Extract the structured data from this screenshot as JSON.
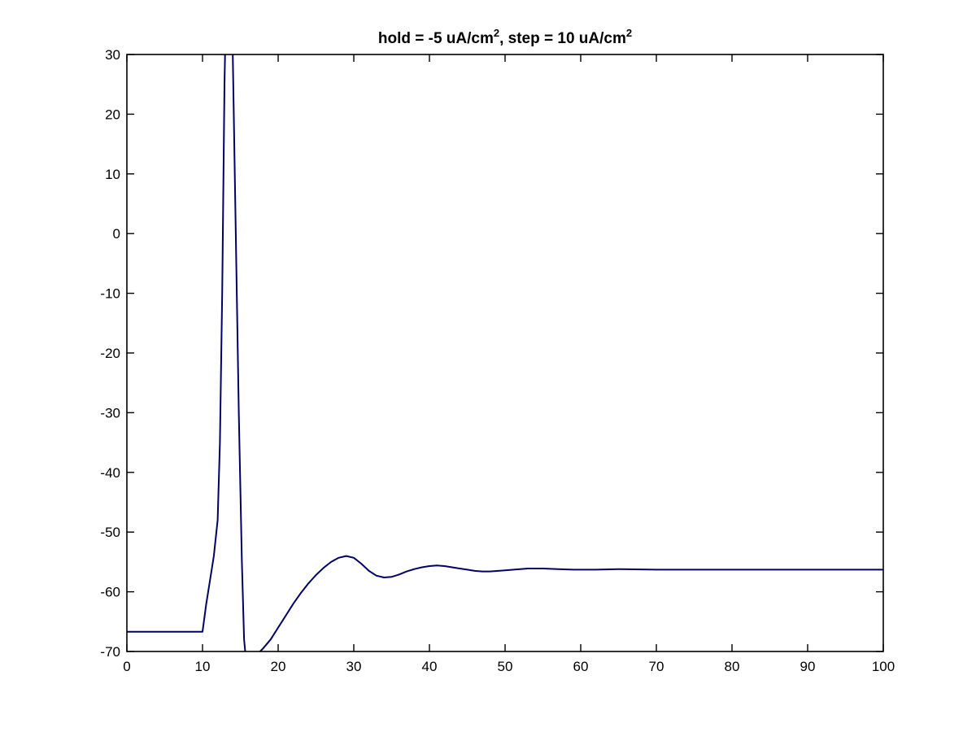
{
  "chart_data": {
    "type": "line",
    "title": {
      "parts": [
        {
          "text": "hold = -5 uA/cm",
          "sup": false
        },
        {
          "text": "2",
          "sup": true
        },
        {
          "text": ", step = 10 uA/cm",
          "sup": false
        },
        {
          "text": "2",
          "sup": true
        }
      ]
    },
    "xlabel": "",
    "ylabel": "",
    "xlim": [
      0,
      100
    ],
    "ylim": [
      -70,
      30
    ],
    "xticks": [
      0,
      10,
      20,
      30,
      40,
      50,
      60,
      70,
      80,
      90,
      100
    ],
    "yticks": [
      -70,
      -60,
      -50,
      -40,
      -30,
      -20,
      -10,
      0,
      10,
      20,
      30
    ],
    "grid": false,
    "line_color": "#000066",
    "series": [
      {
        "x": [
          0,
          10,
          10.5,
          11,
          11.5,
          12,
          12.3,
          12.6,
          12.9,
          13.2,
          13.6,
          14.0,
          14.4,
          14.8,
          15.2,
          15.5,
          15.8,
          16.5,
          17.2,
          18,
          19,
          20,
          21,
          22,
          23,
          24,
          25,
          26,
          27,
          28,
          29,
          30,
          31,
          32,
          33,
          34,
          35,
          36,
          37,
          38,
          39,
          40,
          41,
          42,
          43,
          44,
          45,
          46,
          47,
          48,
          50,
          52,
          53,
          55,
          57,
          59,
          62,
          65,
          70,
          75,
          80,
          85,
          90,
          95,
          100
        ],
        "y": [
          -66.7,
          -66.7,
          -62.0,
          -58.0,
          -54.0,
          -48.0,
          -35.0,
          -10.0,
          25.0,
          45.0,
          50.0,
          30.0,
          0.0,
          -30.0,
          -55.0,
          -68.0,
          -72.0,
          -75.0,
          -70.5,
          -69.5,
          -68.0,
          -66.0,
          -64.0,
          -62.0,
          -60.2,
          -58.6,
          -57.2,
          -56.0,
          -55.0,
          -54.3,
          -54.0,
          -54.3,
          -55.3,
          -56.5,
          -57.3,
          -57.6,
          -57.5,
          -57.1,
          -56.6,
          -56.2,
          -55.9,
          -55.7,
          -55.6,
          -55.7,
          -55.9,
          -56.1,
          -56.3,
          -56.5,
          -56.6,
          -56.6,
          -56.4,
          -56.2,
          -56.1,
          -56.1,
          -56.2,
          -56.3,
          -56.3,
          -56.2,
          -56.3,
          -56.3,
          -56.3,
          -56.3,
          -56.3,
          -56.3,
          -56.3
        ]
      }
    ]
  }
}
